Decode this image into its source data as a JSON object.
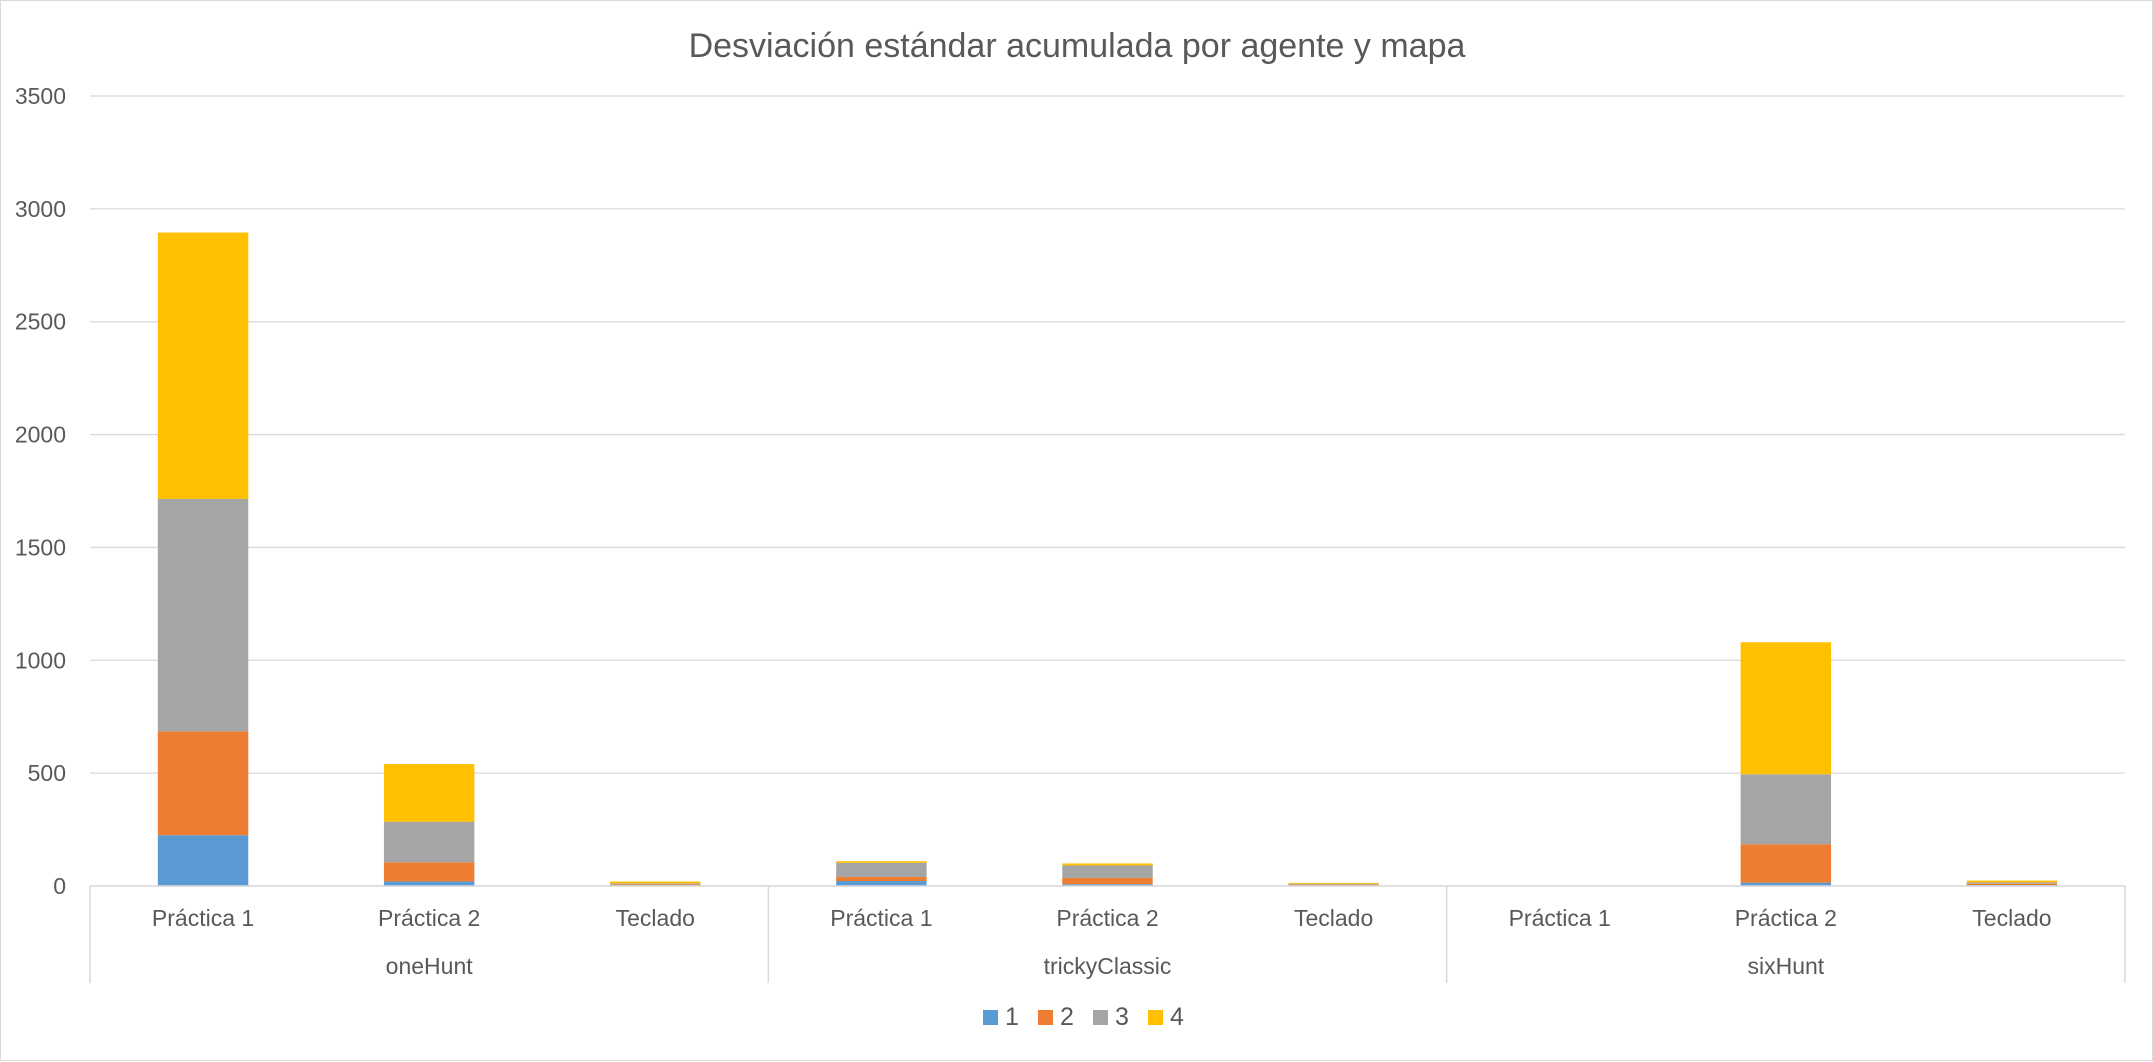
{
  "chart_data": {
    "type": "bar",
    "stacked": true,
    "title": "Desviación estándar acumulada por agente y mapa",
    "xlabel": "",
    "ylabel": "",
    "ylim": [
      0,
      3500
    ],
    "yticks": [
      0,
      500,
      1000,
      1500,
      2000,
      2500,
      3000,
      3500
    ],
    "grid": true,
    "legend_position": "bottom",
    "groups": [
      {
        "name": "oneHunt",
        "categories": [
          "Práctica 1",
          "Práctica 2",
          "Teclado"
        ]
      },
      {
        "name": "trickyClassic",
        "categories": [
          "Práctica 1",
          "Práctica 2",
          "Teclado"
        ]
      },
      {
        "name": "sixHunt",
        "categories": [
          "Práctica 1",
          "Práctica 2",
          "Teclado"
        ]
      }
    ],
    "series": [
      {
        "name": "1",
        "color": "#5b9bd5",
        "values": [
          225,
          20,
          3,
          22,
          8,
          3,
          0,
          15,
          4
        ]
      },
      {
        "name": "2",
        "color": "#ed7d31",
        "values": [
          460,
          85,
          4,
          18,
          28,
          3,
          0,
          170,
          6
        ]
      },
      {
        "name": "3",
        "color": "#a5a5a5",
        "values": [
          1030,
          180,
          5,
          63,
          55,
          4,
          0,
          310,
          6
        ]
      },
      {
        "name": "4",
        "color": "#ffc000",
        "values": [
          1180,
          255,
          8,
          7,
          9,
          4,
          0,
          585,
          8
        ]
      }
    ]
  }
}
